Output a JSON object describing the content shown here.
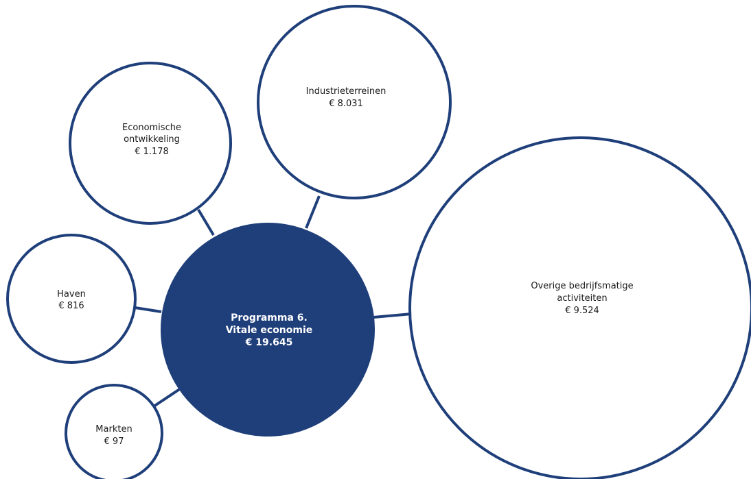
{
  "center": {
    "title_line1": "Programma 6.",
    "title_line2": "Vitale economie",
    "value": "€ 19.645"
  },
  "bubbles": [
    {
      "id": "economische-ontwikkeling",
      "label_line1": "Economische",
      "label_line2": "ontwikkeling",
      "value": "€ 1.178"
    },
    {
      "id": "industrieterreinen",
      "label_line1": "Industrieterreinen",
      "value": "€ 8.031"
    },
    {
      "id": "overige-bedrijfsmatige-activiteiten",
      "label_line1": "Overige bedrijfsmatige",
      "label_line2": "activiteiten",
      "value": "€ 9.524"
    },
    {
      "id": "haven",
      "label_line1": "Haven",
      "value": "€ 816"
    },
    {
      "id": "markten",
      "label_line1": "Markten",
      "value": "€ 97"
    }
  ],
  "colors": {
    "accent": "#1f3f7a",
    "background": "#ffffff",
    "text": "#1a1a1a"
  }
}
